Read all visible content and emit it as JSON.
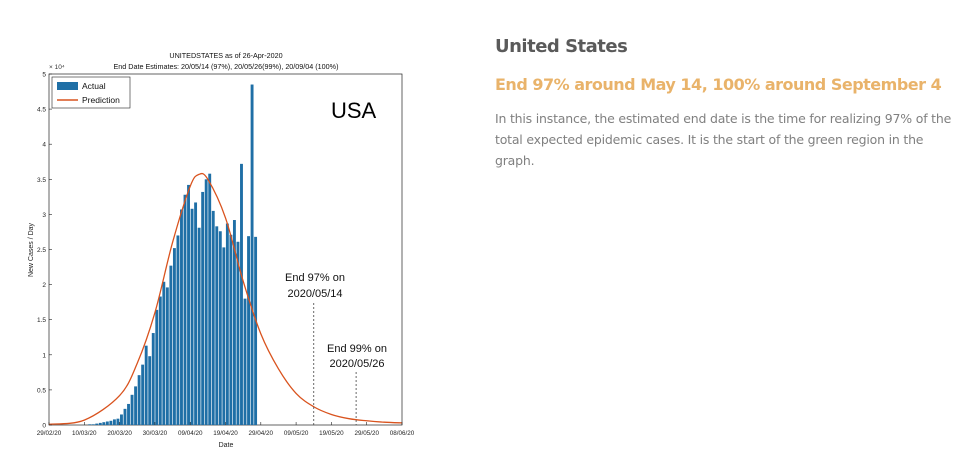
{
  "article": {
    "heading": "United States",
    "subheading": "End 97% around May 14, 100% around September 4",
    "body": "In this instance, the estimated end date is the time for realizing 97% of the total expected epidemic cases. It is the start of the green region in the graph."
  },
  "chart_data": {
    "type": "bar",
    "title": "UNITEDSTATES as of 26-Apr-2020",
    "subtitle": "End Date Estimates: 20/05/14 (97%), 20/05/26(99%), 20/09/04 (100%)",
    "xlabel": "Date",
    "ylabel": "New Cases / Day",
    "y_exponent_label": "× 10⁴",
    "ylim": [
      0,
      5
    ],
    "yticks": [
      "0",
      "0.5",
      "1",
      "1.5",
      "2",
      "2.5",
      "3",
      "3.5",
      "4",
      "4.5",
      "5"
    ],
    "xlim": [
      0,
      100
    ],
    "xticks": [
      {
        "x": 0,
        "label": "29/02/20"
      },
      {
        "x": 10,
        "label": "10/03/20"
      },
      {
        "x": 20,
        "label": "20/03/20"
      },
      {
        "x": 30,
        "label": "30/03/20"
      },
      {
        "x": 40,
        "label": "09/04/20"
      },
      {
        "x": 50,
        "label": "19/04/20"
      },
      {
        "x": 60,
        "label": "29/04/20"
      },
      {
        "x": 70,
        "label": "09/05/20"
      },
      {
        "x": 80,
        "label": "19/05/20"
      },
      {
        "x": 90,
        "label": "29/05/20"
      },
      {
        "x": 100,
        "label": "08/06/20"
      }
    ],
    "big_label": "USA",
    "legend": {
      "position": "top-left",
      "entries": [
        "Actual",
        "Prediction"
      ]
    },
    "colors": {
      "actual": "#1f6fa6",
      "prediction": "#d9531e"
    },
    "series": [
      {
        "name": "Actual",
        "x_start": 0,
        "values": [
          0.0,
          0.0,
          0.0,
          0.0,
          0.0,
          0.0,
          0.0,
          0.0,
          0.0,
          0.0,
          0.0,
          0.01,
          0.01,
          0.02,
          0.03,
          0.04,
          0.05,
          0.06,
          0.08,
          0.09,
          0.15,
          0.23,
          0.3,
          0.43,
          0.55,
          0.71,
          0.86,
          1.13,
          0.98,
          1.31,
          1.64,
          1.83,
          2.04,
          1.96,
          2.27,
          2.52,
          2.7,
          3.07,
          3.28,
          3.42,
          3.08,
          3.17,
          2.81,
          3.32,
          3.5,
          3.58,
          3.05,
          2.83,
          2.76,
          2.53,
          2.87,
          2.71,
          2.92,
          2.61,
          3.72,
          1.8,
          2.69,
          4.85,
          2.68
        ]
      },
      {
        "name": "Prediction",
        "points": [
          [
            0,
            0.01
          ],
          [
            10,
            0.07
          ],
          [
            20,
            0.42
          ],
          [
            25,
            0.88
          ],
          [
            30,
            1.6
          ],
          [
            35,
            2.6
          ],
          [
            40,
            3.4
          ],
          [
            42.5,
            3.57
          ],
          [
            45,
            3.5
          ],
          [
            50,
            2.95
          ],
          [
            55,
            2.05
          ],
          [
            60,
            1.3
          ],
          [
            65,
            0.8
          ],
          [
            70,
            0.45
          ],
          [
            75,
            0.26
          ],
          [
            80,
            0.15
          ],
          [
            85,
            0.09
          ],
          [
            90,
            0.06
          ],
          [
            95,
            0.04
          ],
          [
            100,
            0.03
          ]
        ]
      }
    ],
    "annotations": [
      {
        "text_line1": "End 97% on",
        "text_line2": "2020/05/14",
        "x": 75
      },
      {
        "text_line1": "End 99% on",
        "text_line2": "2020/05/26",
        "x": 87
      }
    ]
  }
}
